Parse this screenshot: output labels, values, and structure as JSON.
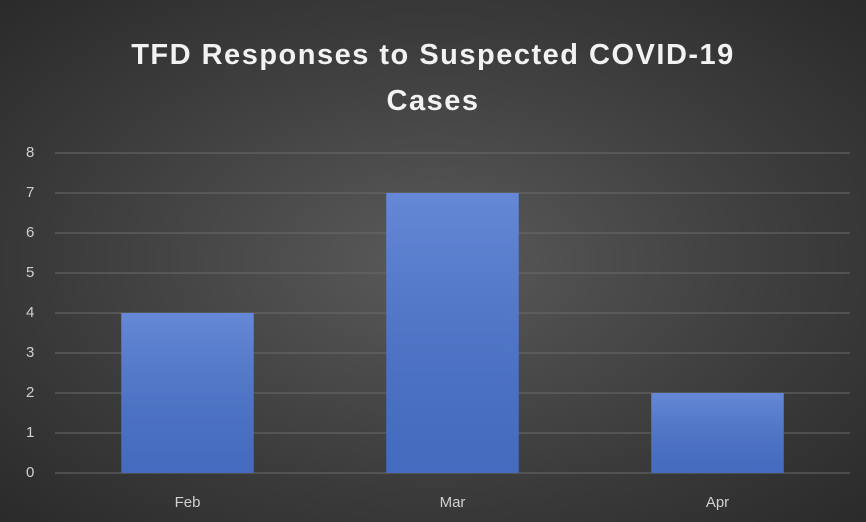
{
  "chart_data": {
    "type": "bar",
    "title": "TFD Responses to Suspected COVID-19 Cases",
    "categories": [
      "Feb",
      "Mar",
      "Apr"
    ],
    "values": [
      4,
      7,
      2
    ],
    "color": "#4a74cf",
    "ylim": [
      0,
      8
    ],
    "yticks": [
      0,
      1,
      2,
      3,
      4,
      5,
      6,
      7,
      8
    ],
    "grid": true
  }
}
